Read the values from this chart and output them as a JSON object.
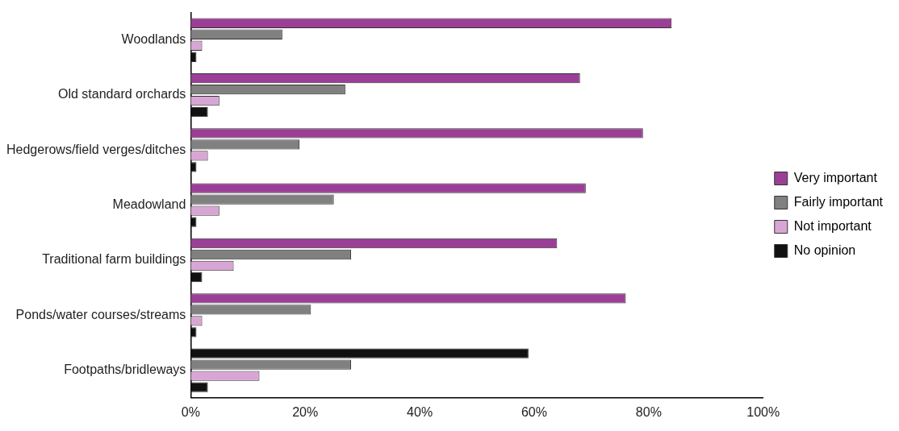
{
  "chart_data": {
    "type": "bar",
    "orientation": "horizontal",
    "categories": [
      "Woodlands",
      "Old standard orchards",
      "Hedgerows/field verges/ditches",
      "Meadowland",
      "Traditional farm buildings",
      "Ponds/water courses/streams",
      "Footpaths/bridleways"
    ],
    "series": [
      {
        "name": "Very important",
        "color": "#9b3f96",
        "colors": [
          "#9b3f96",
          "#9b3f96",
          "#9b3f96",
          "#9b3f96",
          "#9b3f96",
          "#9b3f96",
          "#111111"
        ],
        "values": [
          84,
          68,
          79,
          69,
          64,
          76,
          59
        ]
      },
      {
        "name": "Fairly important",
        "color": "#808080",
        "values": [
          16,
          27,
          19,
          25,
          28,
          21,
          28
        ]
      },
      {
        "name": "Not important",
        "color": "#d8a6d4",
        "values": [
          2,
          5,
          3,
          5,
          7.5,
          2,
          12
        ]
      },
      {
        "name": "No opinion",
        "color": "#111111",
        "values": [
          1,
          3,
          1,
          1,
          2,
          1,
          3
        ]
      }
    ],
    "xlim": [
      0,
      100
    ],
    "xticks": [
      {
        "value": 0,
        "label": "0%"
      },
      {
        "value": 20,
        "label": "20%"
      },
      {
        "value": 40,
        "label": "40%"
      },
      {
        "value": 60,
        "label": "60%"
      },
      {
        "value": 80,
        "label": "80%"
      },
      {
        "value": 100,
        "label": "100%"
      }
    ],
    "grid": false,
    "legend": "right"
  }
}
